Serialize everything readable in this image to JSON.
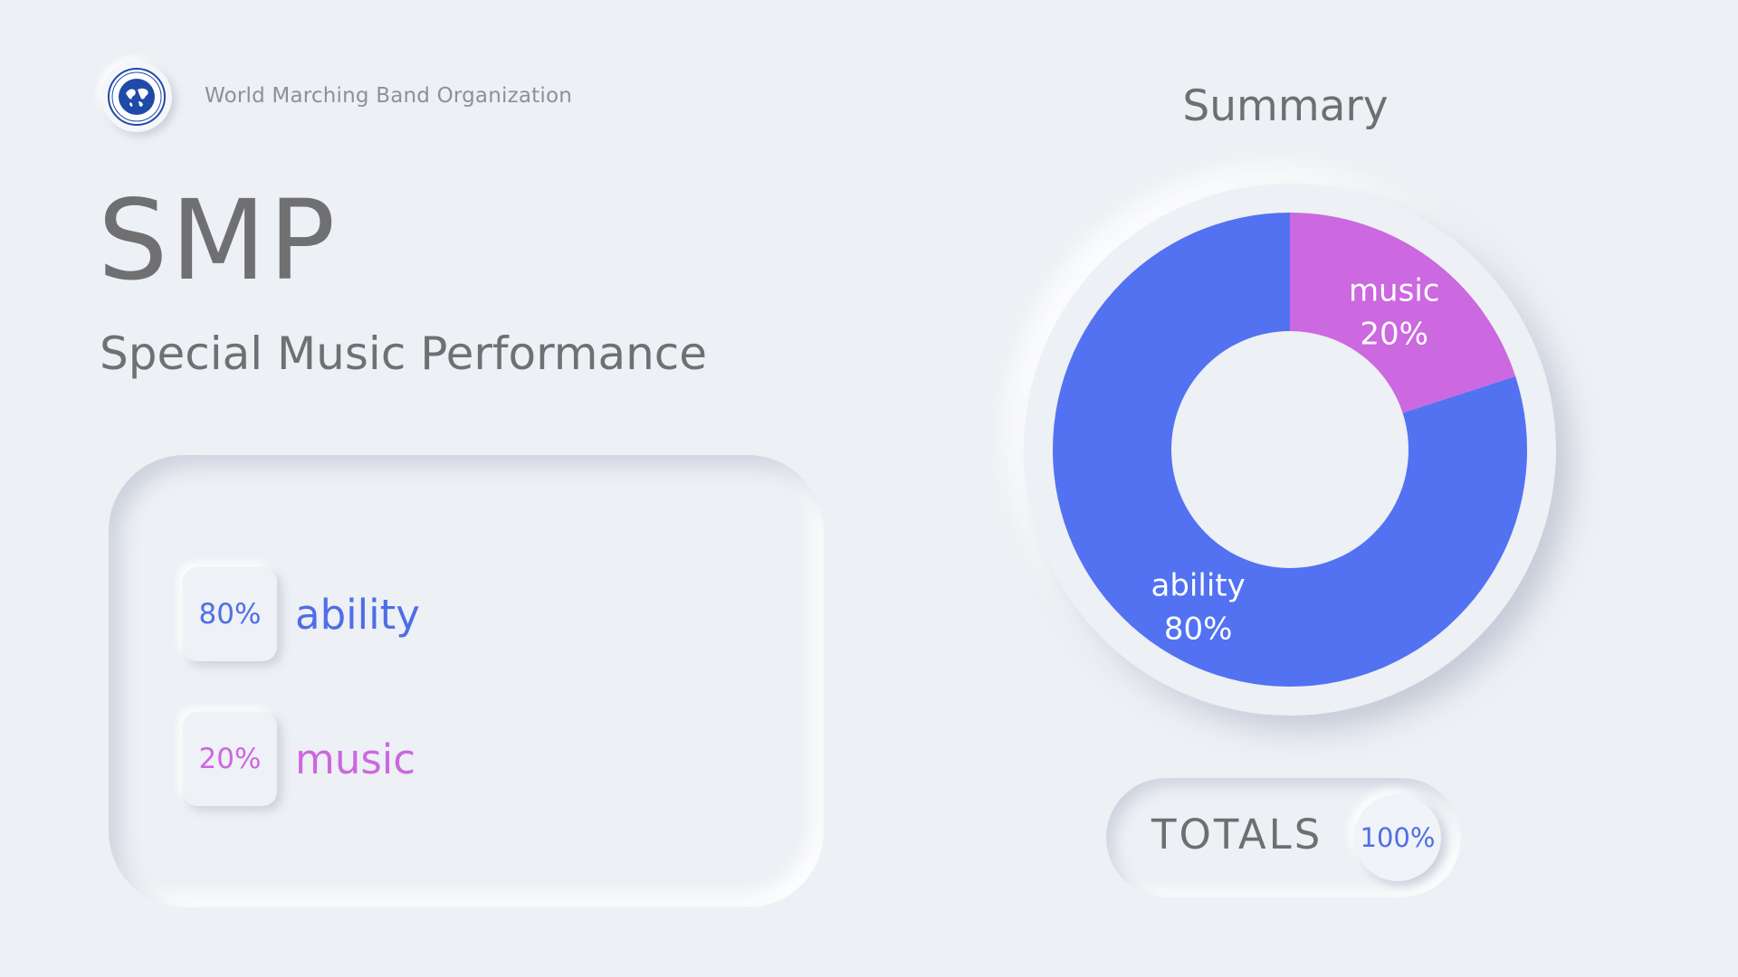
{
  "header": {
    "org_name": "World Marching Band Organization",
    "title": "SMP",
    "subtitle": "Special Music Performance"
  },
  "legend": {
    "items": [
      {
        "percent": "80%",
        "label": "ability",
        "color": "#5272f2"
      },
      {
        "percent": "20%",
        "label": "music",
        "color": "#cc68e0"
      }
    ]
  },
  "summary": {
    "title": "Summary"
  },
  "totals": {
    "label": "TOTALS",
    "value": "100%",
    "value_color": "#4f6ee6"
  },
  "colors": {
    "background": "#edf0f4",
    "text": "#6f6f72",
    "ability": "#5272f2",
    "music": "#cc68e0",
    "logo_blue": "#1f4aa8"
  },
  "chart_data": {
    "type": "pie",
    "variant": "donut",
    "title": "Summary",
    "categories": [
      "music",
      "ability"
    ],
    "values": [
      20,
      80
    ],
    "labels": [
      "20%",
      "80%"
    ],
    "colors": [
      "#cc68e0",
      "#5272f2"
    ],
    "start": "top, clockwise"
  }
}
